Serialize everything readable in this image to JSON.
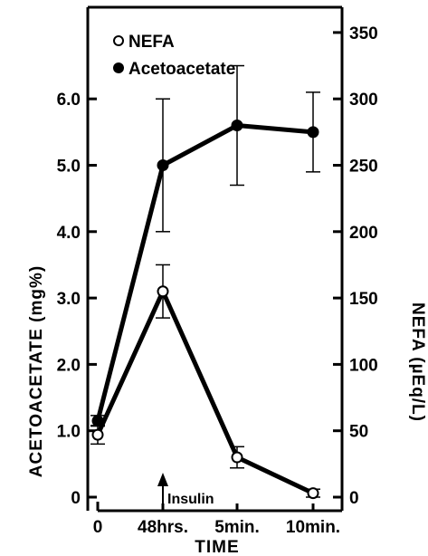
{
  "chart_data": {
    "type": "line",
    "x_categories": [
      "0",
      "48hrs.",
      "5min.",
      "10min."
    ],
    "xlabel": "TIME",
    "ylabel_left": "ACETOACETATE (mg%)",
    "ylabel_right": "NEFA (µEq/L)",
    "y_left": {
      "range": [
        0,
        7.0
      ],
      "ticks": [
        0,
        1.0,
        2.0,
        3.0,
        4.0,
        5.0,
        6.0
      ],
      "tick_labels": [
        "0",
        "1.0",
        "2.0",
        "3.0",
        "4.0",
        "5.0",
        "6.0"
      ]
    },
    "y_right": {
      "range": [
        0,
        350
      ],
      "ticks": [
        0,
        50,
        100,
        150,
        200,
        250,
        300,
        350
      ],
      "tick_labels": [
        "0",
        "50",
        "100",
        "150",
        "200",
        "250",
        "300",
        "350"
      ]
    },
    "legend_position": "top-left",
    "series": [
      {
        "name": "NEFA",
        "marker": "open-circle",
        "axis": "right",
        "values": [
          47,
          155,
          30,
          3
        ],
        "error": [
          7,
          20,
          8,
          3
        ]
      },
      {
        "name": "Acetoacetate",
        "marker": "filled-circle",
        "axis": "left",
        "values": [
          1.15,
          5.0,
          5.6,
          5.5
        ],
        "error": [
          0.08,
          1.0,
          0.9,
          0.6
        ]
      }
    ],
    "annotations": [
      {
        "text": "Insulin",
        "x_index": 1,
        "arrow": "up"
      }
    ]
  }
}
